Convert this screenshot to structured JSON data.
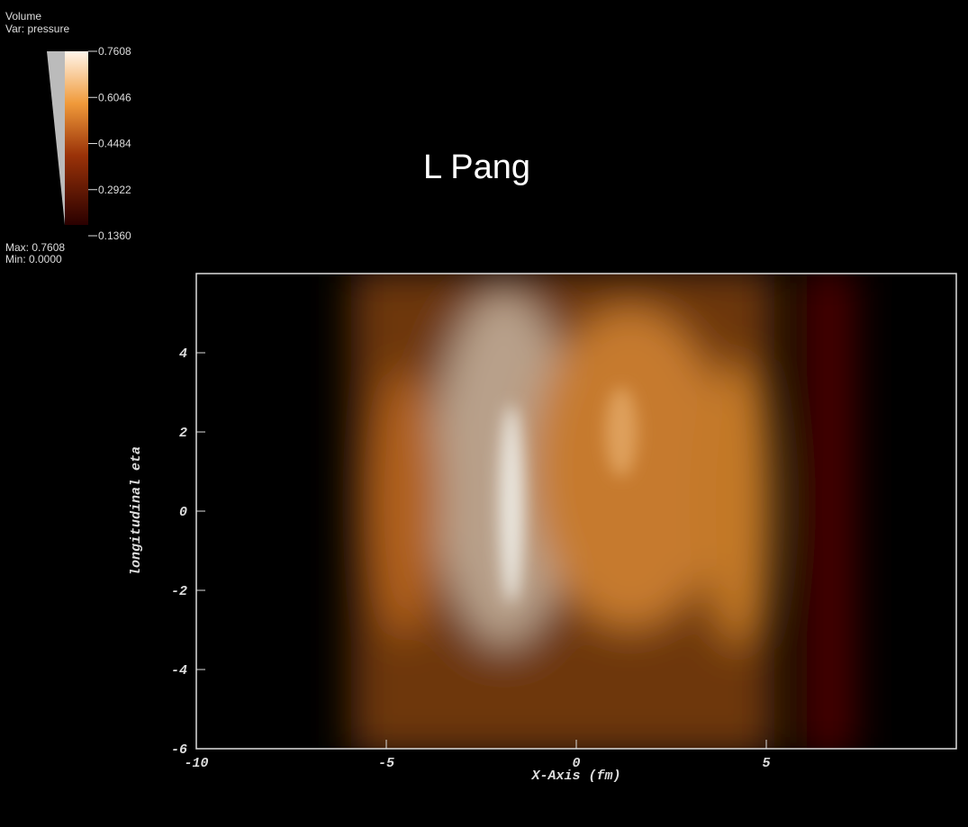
{
  "legend": {
    "title": "Volume",
    "variable": "Var: pressure",
    "ticks": [
      {
        "value": 0.7608,
        "label": "0.7608"
      },
      {
        "value": 0.6046,
        "label": "0.6046"
      },
      {
        "value": 0.4484,
        "label": "0.4484"
      },
      {
        "value": 0.2922,
        "label": "0.2922"
      },
      {
        "value": 0.136,
        "label": "0.1360"
      }
    ],
    "max": "Max: 0.7608",
    "min": "Min: 0.0000"
  },
  "annotation": "L Pang",
  "plot": {
    "xlabel": "X-Axis (fm)",
    "ylabel": "longitudinal eta",
    "xlim": [
      -10,
      10
    ],
    "xticks": [
      -10,
      -5,
      0,
      5
    ],
    "ylim": [
      -6,
      6
    ],
    "yticks": [
      -6,
      -4,
      -2,
      0,
      2,
      4
    ]
  }
}
